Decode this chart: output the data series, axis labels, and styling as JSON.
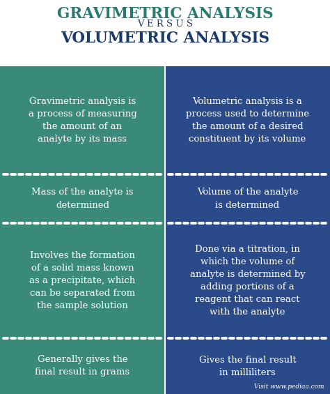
{
  "title1": "GRAVIMETRIC ANALYSIS",
  "versus": "V E R S U S",
  "title2": "VOLUMETRIC ANALYSIS",
  "title1_color": "#2a7a6f",
  "title2_color": "#1a3a6b",
  "versus_color": "#1a3a6b",
  "left_bg": "#3a8a7a",
  "right_bg": "#2a4a8a",
  "white": "#ffffff",
  "divider_color": "#ffffff",
  "left_cells": [
    "Gravimetric analysis is\na process of measuring\nthe amount of an\nanalyte by its mass",
    "Mass of the analyte is\ndetermined",
    "Involves the formation\nof a solid mass known\nas a precipitate, which\ncan be separated from\nthe sample solution",
    "Generally gives the\nfinal result in grams"
  ],
  "right_cells": [
    "Volumetric analysis is a\nprocess used to determine\nthe amount of a desired\nconstituent by its volume",
    "Volume of the analyte\nis determined",
    "Done via a titration, in\nwhich the volume of\nanalyte is determined by\nadding portions of a\nreagent that can react\nwith the analyte",
    "Gives the final result\nin milliliters"
  ],
  "watermark": "Visit www.pediaa.com",
  "fig_width": 4.74,
  "fig_height": 5.65,
  "dpi": 100
}
